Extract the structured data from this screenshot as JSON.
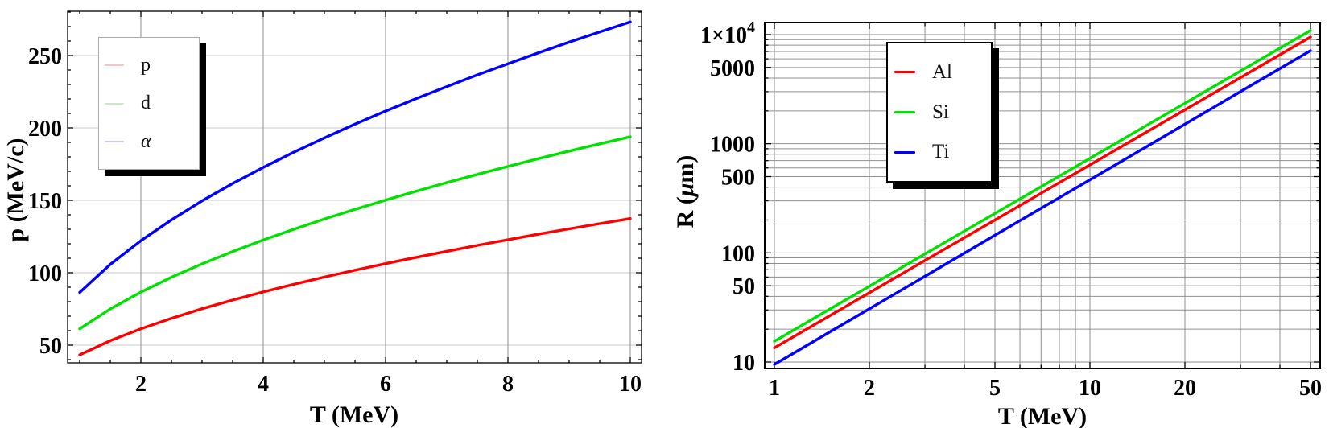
{
  "figure": {
    "background": "#ffffff",
    "text_color": "#000000"
  },
  "chart_data": [
    {
      "id": "momentum-plot",
      "type": "line",
      "xscale": "linear",
      "yscale": "linear",
      "title": "",
      "xlabel": "T (MeV)",
      "ylabel": "p (MeV/c)",
      "xlim": [
        0.8,
        10.19
      ],
      "ylim": [
        37.8,
        280.6
      ],
      "x_ticks": [
        2,
        4,
        6,
        8,
        10
      ],
      "x_minor_step": 0.5,
      "y_ticks": [
        50,
        100,
        150,
        200,
        250
      ],
      "y_minor_step": 10,
      "grid": true,
      "grid_color_v": "#8f8f8f",
      "grid_color_h": "#c9c9c9",
      "legend": {
        "position": "upper-left",
        "entries": [
          {
            "label": "p",
            "swatch_color": "#f4c6c6"
          },
          {
            "label": "d",
            "swatch_color": "#c9e9c9"
          },
          {
            "label": "α",
            "swatch_color": "#cbcbf2"
          }
        ]
      },
      "series": [
        {
          "id": "p",
          "name": "p",
          "color": "#ff0000",
          "x": [
            1,
            1.5,
            2,
            2.5,
            3,
            3.5,
            4,
            4.5,
            5,
            5.5,
            6,
            6.5,
            7,
            7.5,
            8,
            8.5,
            9,
            9.5,
            10
          ],
          "y": [
            43.3,
            53.1,
            61.3,
            68.5,
            75.1,
            81.1,
            86.7,
            92.0,
            97.0,
            101.7,
            106.3,
            110.6,
            114.8,
            118.9,
            122.8,
            126.6,
            130.3,
            133.9,
            137.4
          ]
        },
        {
          "id": "d",
          "name": "d",
          "color": "#00e100",
          "x": [
            1,
            1.5,
            2,
            2.5,
            3,
            3.5,
            4,
            4.5,
            5,
            5.5,
            6,
            6.5,
            7,
            7.5,
            8,
            8.5,
            9,
            9.5,
            10
          ],
          "y": [
            61.3,
            75.0,
            86.6,
            96.9,
            106.1,
            114.6,
            122.6,
            130.0,
            137.1,
            143.7,
            150.1,
            156.3,
            162.2,
            167.9,
            173.4,
            178.8,
            184.0,
            189.0,
            193.9
          ]
        },
        {
          "id": "alpha",
          "name": "α",
          "color": "#0000ff",
          "x": [
            1,
            1.5,
            2,
            2.5,
            3,
            3.5,
            4,
            4.5,
            5,
            5.5,
            6,
            6.5,
            7,
            7.5,
            8,
            8.5,
            9,
            9.5,
            10
          ],
          "y": [
            86.4,
            105.8,
            122.1,
            136.5,
            149.6,
            161.6,
            172.7,
            183.2,
            193.1,
            202.6,
            211.6,
            220.2,
            228.5,
            236.6,
            244.3,
            251.9,
            259.2,
            266.3,
            273.2
          ]
        }
      ]
    },
    {
      "id": "range-plot",
      "type": "line",
      "xscale": "log",
      "yscale": "log",
      "title": "",
      "xlabel": "T (MeV)",
      "ylabel": "R (μm)",
      "ylabel_parts": {
        "pre": "R (",
        "mu": "μ",
        "post": "m)"
      },
      "xlim": [
        0.93,
        53.6
      ],
      "ylim": [
        8.7,
        12880
      ],
      "x_grid": [
        1,
        2,
        3,
        4,
        5,
        6,
        7,
        8,
        9,
        10,
        20,
        30,
        40,
        50
      ],
      "x_ticks_labeled": [
        1,
        2,
        5,
        10,
        20,
        50
      ],
      "x_tick_labels": [
        "1",
        "2",
        "5",
        "10",
        "20",
        "50"
      ],
      "y_ticks_labeled": [
        {
          "v": 10000,
          "t": "1×10",
          "sup": "4"
        },
        {
          "v": 5000,
          "t": "5000"
        },
        {
          "v": 1000,
          "t": "1000"
        },
        {
          "v": 500,
          "t": "500"
        },
        {
          "v": 100,
          "t": "100"
        },
        {
          "v": 50,
          "t": "50"
        },
        {
          "v": 10,
          "t": "10"
        }
      ],
      "grid": true,
      "grid_color": "#8f8f8f",
      "legend": {
        "position": "upper-right",
        "entries": [
          {
            "label": "Al",
            "swatch_color": "#ff0000"
          },
          {
            "label": "Si",
            "swatch_color": "#00e100"
          },
          {
            "label": "Ti",
            "swatch_color": "#0000ff"
          }
        ]
      },
      "series": [
        {
          "id": "al",
          "name": "Al",
          "color": "#ff0000",
          "x": [
            1,
            1.5,
            2,
            3,
            5,
            7,
            10,
            15,
            20,
            30,
            50
          ],
          "y": [
            13.5,
            26.6,
            43.1,
            85.1,
            200,
            352,
            640,
            1263,
            2045,
            4035,
            9496
          ]
        },
        {
          "id": "si",
          "name": "Si",
          "color": "#00e100",
          "x": [
            1,
            1.5,
            2,
            3,
            5,
            7,
            10,
            15,
            20,
            30,
            50
          ],
          "y": [
            15.5,
            30.6,
            49.5,
            97.7,
            230,
            404,
            735,
            1451,
            2348,
            4633,
            10903
          ]
        },
        {
          "id": "ti",
          "name": "Ti",
          "color": "#0000ff",
          "x": [
            1,
            1.5,
            2,
            3,
            5,
            7,
            10,
            15,
            20,
            30,
            50
          ],
          "y": [
            9.5,
            18.9,
            30.7,
            61.0,
            145,
            256,
            467,
            928,
            1510,
            2999,
            7116
          ]
        }
      ]
    }
  ]
}
